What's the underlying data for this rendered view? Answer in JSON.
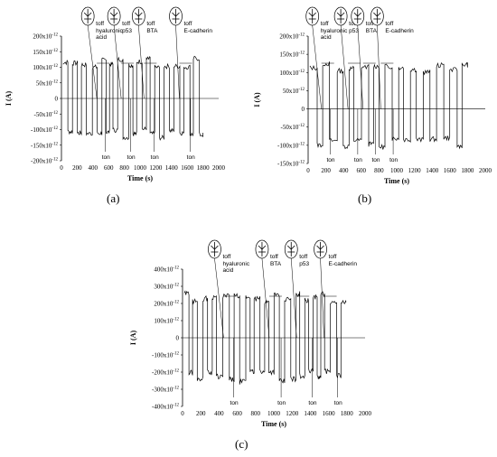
{
  "chart_data": [
    {
      "type": "line",
      "panel_label": "(a)",
      "ylabel": "I (A)",
      "xlabel": "Time (s)",
      "xlim": [
        0,
        2000
      ],
      "ylim": [
        -200,
        200
      ],
      "y_unit_suffix": "x10",
      "y_unit_exp": "-12",
      "xticks": [
        0,
        200,
        400,
        600,
        800,
        1000,
        1200,
        1400,
        1600,
        1800,
        2000
      ],
      "yticks": [
        200,
        150,
        100,
        50,
        0,
        -50,
        -100,
        -150,
        -200
      ],
      "ytick_labels": [
        "200x10",
        "150x10",
        "100x10",
        "50x10",
        "0",
        "-50x10",
        "-100x10",
        "-150x10",
        "-200x10"
      ],
      "signal": {
        "t_start": 20,
        "t_end": 1800,
        "amplitude": 130,
        "offset": 0,
        "period": 95,
        "seed": 7
      },
      "annotations": [
        {
          "t": 450,
          "off_label": "toff",
          "molecule": "hyaluronic\nacid",
          "ton_label": "ton",
          "ton_t": 560
        },
        {
          "t": 760,
          "off_label": "toff",
          "molecule": "p53",
          "ton_label": "ton",
          "ton_t": 880
        },
        {
          "t": 1050,
          "off_label": "toff",
          "molecule": "BTA",
          "ton_label": "ton",
          "ton_t": 1180
        },
        {
          "t": 1500,
          "off_label": "toff",
          "molecule": "E-cadherin",
          "ton_label": "ton",
          "ton_t": 1640
        }
      ]
    },
    {
      "type": "line",
      "panel_label": "(b)",
      "ylabel": "I (A)",
      "xlabel": "Time (s)",
      "xlim": [
        0,
        2000
      ],
      "ylim": [
        -150,
        200
      ],
      "y_unit_suffix": "x10",
      "y_unit_exp": "-12",
      "xticks": [
        0,
        200,
        400,
        600,
        800,
        1000,
        1200,
        1400,
        1600,
        1800,
        2000
      ],
      "yticks": [
        200,
        150,
        100,
        50,
        0,
        -50,
        -100,
        -150
      ],
      "ytick_labels": [
        "200x10",
        "150x10",
        "100x10",
        "50x10",
        "0",
        "-50x10",
        "-100x10",
        "-150x10"
      ],
      "signal": {
        "t_start": 20,
        "t_end": 1800,
        "amplitude": 115,
        "offset": 10,
        "period": 110,
        "seed": 13
      },
      "annotations": [
        {
          "t": 150,
          "off_label": "toff",
          "molecule": "hyaluronic\nacid",
          "ton_label": "ton",
          "ton_t": 250
        },
        {
          "t": 450,
          "off_label": "toff",
          "molecule": "p53",
          "ton_label": "ton",
          "ton_t": 560
        },
        {
          "t": 620,
          "off_label": "toff",
          "molecule": "BTA",
          "ton_label": "ton",
          "ton_t": 760
        },
        {
          "t": 820,
          "off_label": "toff",
          "molecule": "E-cadherin",
          "ton_label": "ton",
          "ton_t": 960
        }
      ]
    },
    {
      "type": "line",
      "panel_label": "(c)",
      "ylabel": "I (A)",
      "xlabel": "Time (s)",
      "xlim": [
        0,
        2000
      ],
      "ylim": [
        -400,
        400
      ],
      "y_unit_suffix": "x10",
      "y_unit_exp": "-12",
      "xticks": [
        0,
        200,
        400,
        600,
        800,
        1000,
        1200,
        1400,
        1600,
        1800,
        2000
      ],
      "yticks": [
        400,
        300,
        200,
        100,
        0,
        -100,
        -200,
        -300,
        -400
      ],
      "ytick_labels": [
        "400x10",
        "300x10",
        "200x10",
        "100x10",
        "0",
        "-100x10",
        "-200x10",
        "-300x10",
        "-400x10"
      ],
      "signal": {
        "t_start": 20,
        "t_end": 1790,
        "amplitude": 260,
        "offset": 0,
        "period": 85,
        "seed": 29
      },
      "annotations": [
        {
          "t": 450,
          "off_label": "toff",
          "molecule": "hyaluronic\nacid",
          "ton_label": "ton",
          "ton_t": 560
        },
        {
          "t": 950,
          "off_label": "toff",
          "molecule": "BTA",
          "ton_label": "ton",
          "ton_t": 1080
        },
        {
          "t": 1250,
          "off_label": "toff",
          "molecule": "p53",
          "ton_label": "ton",
          "ton_t": 1420
        },
        {
          "t": 1550,
          "off_label": "toff",
          "molecule": "E-cadherin",
          "ton_label": "ton",
          "ton_t": 1700
        }
      ]
    }
  ]
}
